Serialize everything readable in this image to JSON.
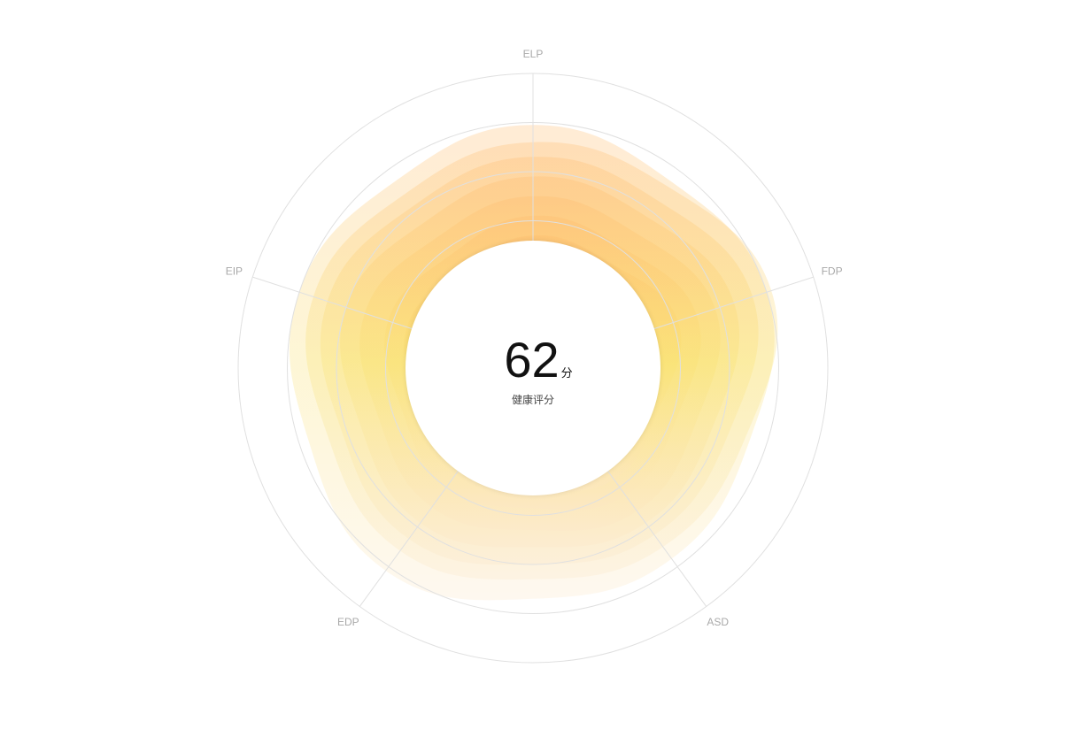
{
  "chart_data": {
    "type": "radar",
    "indicators": [
      "ELP",
      "FDP",
      "ASD",
      "EDP",
      "EIP"
    ],
    "series": [
      {
        "values": [
          4.95,
          5.0,
          4.8,
          5.1,
          5.0
        ]
      },
      {
        "values": [
          4.6,
          5.1,
          4.5,
          4.6,
          4.7
        ]
      },
      {
        "values": [
          4.3,
          4.7,
          4.2,
          4.3,
          4.4
        ]
      },
      {
        "values": [
          3.9,
          4.3,
          3.9,
          3.9,
          4.0
        ]
      },
      {
        "values": [
          3.5,
          3.9,
          3.6,
          3.5,
          3.6
        ]
      },
      {
        "values": [
          3.1,
          3.5,
          3.2,
          3.0,
          3.1
        ]
      },
      {
        "values": [
          2.7,
          3.1,
          2.8,
          2.6,
          2.7
        ]
      }
    ],
    "max": 6,
    "rings": 6,
    "colors": {
      "top": "#ffb868",
      "mid": "#f9e06a",
      "bottom": "#fbe6c7",
      "grid": "#e0e0e0"
    },
    "score": {
      "value": "62",
      "unit": "分",
      "caption": "健康评分"
    }
  }
}
